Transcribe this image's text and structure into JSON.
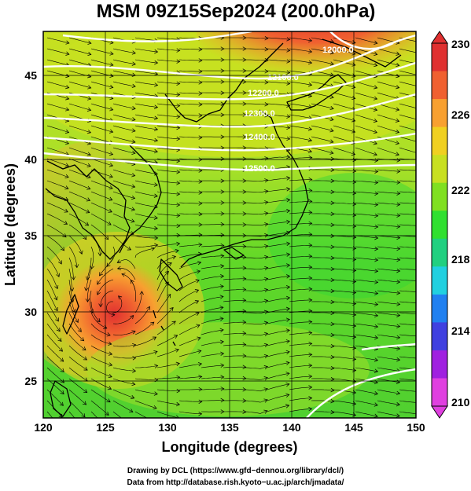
{
  "title": "MSM 09Z15Sep2024 (200.0hPa)",
  "map": {
    "xlabel": "Longitude (degrees)",
    "ylabel": "Latitude  (degrees)",
    "lon_range": [
      120,
      150
    ],
    "lat_range": [
      22.5,
      48
    ],
    "lon_ticks": [
      "120",
      "125",
      "130",
      "135",
      "140",
      "145",
      "150"
    ],
    "lat_ticks": [
      "25",
      "30",
      "35",
      "40",
      "45"
    ],
    "grid": true,
    "contour_labels": [
      "12000.0",
      "12100.0",
      "12200.0",
      "12300.0",
      "12400.0",
      "12500.0"
    ],
    "typhoon_center": {
      "lon": 125.5,
      "lat": 29.7
    }
  },
  "colorbar": {
    "ticks": [
      "230",
      "226",
      "222",
      "218",
      "214",
      "210"
    ],
    "range": [
      210,
      230
    ],
    "colors": [
      "#e040e0",
      "#a020e0",
      "#4040e0",
      "#2080f0",
      "#20d0e0",
      "#20d080",
      "#30e030",
      "#80e020",
      "#c8e020",
      "#f0d020",
      "#f8a030",
      "#f06030",
      "#e03030"
    ]
  },
  "credits": {
    "line1": "Drawing by DCL (https://www.gfd−dennou.org/library/dcl/)",
    "line2": "Data from http://database.rish.kyoto−u.ac.jp/arch/jmadata/"
  }
}
